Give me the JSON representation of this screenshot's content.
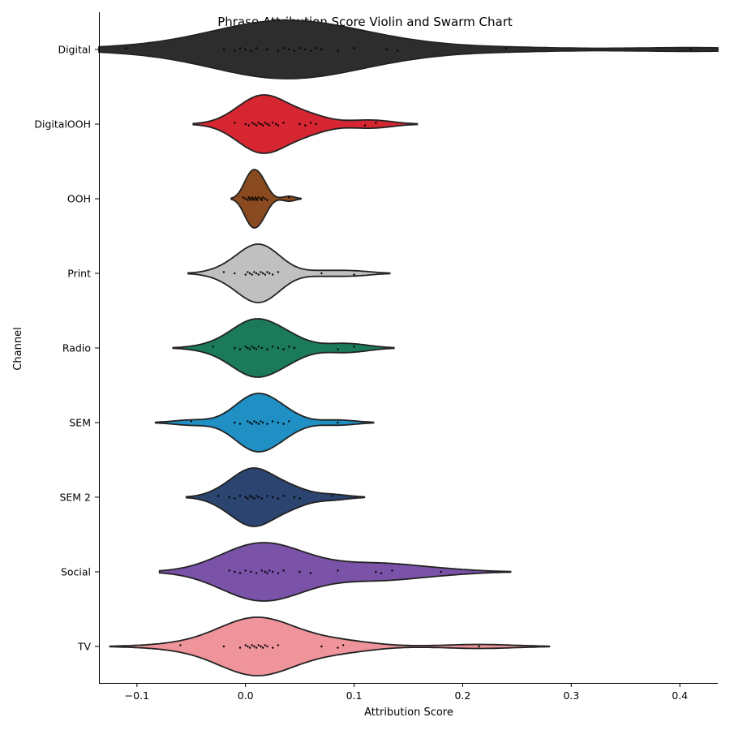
{
  "chart_data": {
    "type": "violin",
    "title": "Phrase Attribution Score Violin and Swarm Chart",
    "xlabel": "Attribution Score",
    "ylabel": "Channel",
    "xlim": [
      -0.135,
      0.435
    ],
    "xticks": [
      -0.1,
      0.0,
      0.1,
      0.2,
      0.3,
      0.4
    ],
    "xtick_labels": [
      "−0.1",
      "0.0",
      "0.1",
      "0.2",
      "0.3",
      "0.4"
    ],
    "categories": [
      "Digital",
      "DigitalOOH",
      "OOH",
      "Print",
      "Radio",
      "SEM",
      "SEM 2",
      "Social",
      "TV"
    ],
    "series": [
      {
        "category": "Digital",
        "color": "#2d2d2d",
        "points": [
          -0.11,
          -0.02,
          -0.01,
          -0.005,
          0.0,
          0.005,
          0.01,
          0.02,
          0.03,
          0.035,
          0.04,
          0.045,
          0.05,
          0.055,
          0.06,
          0.065,
          0.07,
          0.085,
          0.1,
          0.13,
          0.14,
          0.24,
          0.41
        ]
      },
      {
        "category": "DigitalOOH",
        "color": "#d62631",
        "points": [
          -0.01,
          0.0,
          0.003,
          0.006,
          0.008,
          0.01,
          0.012,
          0.014,
          0.016,
          0.018,
          0.02,
          0.022,
          0.025,
          0.028,
          0.03,
          0.035,
          0.05,
          0.055,
          0.06,
          0.065,
          0.11,
          0.12
        ]
      },
      {
        "category": "OOH",
        "color": "#8a4a1f",
        "points": [
          -0.002,
          0.0,
          0.002,
          0.003,
          0.004,
          0.005,
          0.006,
          0.007,
          0.008,
          0.009,
          0.01,
          0.011,
          0.012,
          0.014,
          0.015,
          0.016,
          0.018,
          0.02,
          0.04
        ]
      },
      {
        "category": "Print",
        "color": "#c0c0c0",
        "points": [
          -0.02,
          -0.01,
          0.0,
          0.002,
          0.004,
          0.006,
          0.008,
          0.01,
          0.012,
          0.014,
          0.016,
          0.018,
          0.02,
          0.022,
          0.025,
          0.03,
          0.07,
          0.1
        ]
      },
      {
        "category": "Radio",
        "color": "#1b7a5a",
        "points": [
          -0.03,
          -0.01,
          -0.005,
          0.0,
          0.002,
          0.004,
          0.006,
          0.008,
          0.01,
          0.012,
          0.015,
          0.02,
          0.025,
          0.03,
          0.035,
          0.04,
          0.045,
          0.085,
          0.1
        ]
      },
      {
        "category": "SEM",
        "color": "#1f8fc4",
        "points": [
          -0.05,
          -0.01,
          -0.005,
          0.002,
          0.004,
          0.006,
          0.008,
          0.01,
          0.012,
          0.014,
          0.016,
          0.02,
          0.025,
          0.03,
          0.035,
          0.04,
          0.085
        ]
      },
      {
        "category": "SEM 2",
        "color": "#2c4470",
        "points": [
          -0.025,
          -0.015,
          -0.01,
          -0.005,
          0.0,
          0.002,
          0.004,
          0.006,
          0.008,
          0.01,
          0.012,
          0.015,
          0.02,
          0.025,
          0.03,
          0.035,
          0.045,
          0.05,
          0.08
        ]
      },
      {
        "category": "Social",
        "color": "#7a52a8",
        "points": [
          -0.015,
          -0.01,
          -0.005,
          0.0,
          0.005,
          0.01,
          0.015,
          0.018,
          0.02,
          0.022,
          0.025,
          0.03,
          0.035,
          0.05,
          0.06,
          0.085,
          0.12,
          0.125,
          0.135,
          0.18
        ]
      },
      {
        "category": "TV",
        "color": "#f0949c",
        "points": [
          -0.06,
          -0.02,
          -0.005,
          0.0,
          0.002,
          0.004,
          0.006,
          0.008,
          0.01,
          0.012,
          0.014,
          0.016,
          0.018,
          0.02,
          0.025,
          0.03,
          0.07,
          0.085,
          0.09,
          0.215
        ]
      }
    ]
  }
}
